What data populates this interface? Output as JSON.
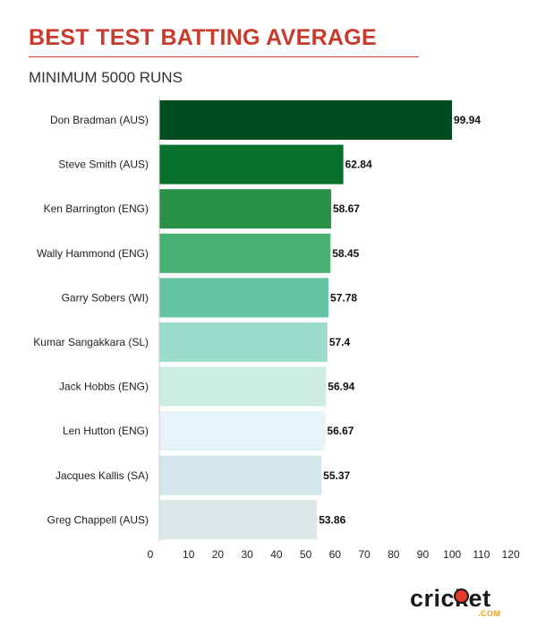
{
  "header": {
    "title": "BEST TEST BATTING AVERAGE",
    "subtitle": "MINIMUM 5000 RUNS"
  },
  "logo": {
    "wordmark": "cricket",
    "suffix": ".COM",
    "colors": {
      "text": "#1a1a1a",
      "ball": "#e53a2c",
      "suffix": "#f0a020"
    }
  },
  "chart_data": {
    "type": "bar",
    "orientation": "horizontal",
    "categories": [
      "Don Bradman (AUS)",
      "Steve Smith (AUS)",
      "Ken Barrington (ENG)",
      "Wally Hammond (ENG)",
      "Garry Sobers (WI)",
      "Kumar Sangakkara (SL)",
      "Jack Hobbs (ENG)",
      "Len Hutton (ENG)",
      "Jacques Kallis (SA)",
      "Greg Chappell (AUS)"
    ],
    "values": [
      99.94,
      62.84,
      58.67,
      58.45,
      57.78,
      57.4,
      56.94,
      56.67,
      55.37,
      53.86
    ],
    "value_labels": [
      "99.94",
      "62.84",
      "58.67",
      "58.45",
      "57.78",
      "57.4",
      "56.94",
      "56.67",
      "55.37",
      "53.86"
    ],
    "bar_colors": [
      "#024d1f",
      "#07712c",
      "#2a9248",
      "#47b073",
      "#65c5a3",
      "#9cdccb",
      "#cdece3",
      "#e5f4f8",
      "#d4e7ec",
      "#dde6e8"
    ],
    "xticks": [
      0,
      10,
      20,
      30,
      40,
      50,
      60,
      70,
      80,
      90,
      100,
      110,
      120
    ],
    "xlim": [
      0,
      120
    ],
    "grid": false,
    "title": "BEST TEST BATTING AVERAGE",
    "subtitle": "MINIMUM 5000 RUNS",
    "xlabel": "",
    "ylabel": ""
  }
}
